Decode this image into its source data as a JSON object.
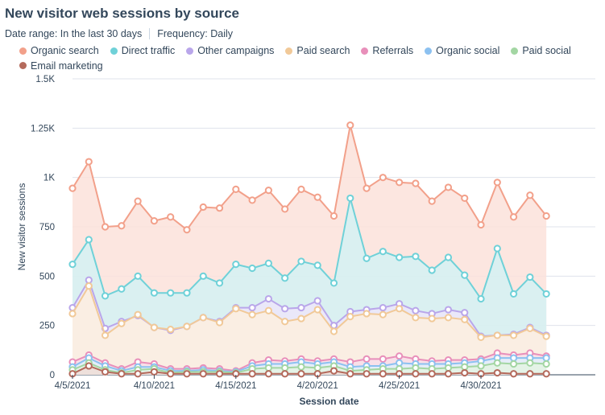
{
  "header": {
    "title": "New visitor web sessions by source",
    "date_range": "Date range: In the last 30 days",
    "frequency": "Frequency: Daily"
  },
  "chart_data": {
    "type": "area",
    "stacked": false,
    "title": "New visitor web sessions by source",
    "xlabel": "Session date",
    "ylabel": "New visitor sessions",
    "ylim": [
      0,
      1500
    ],
    "yticks": [
      0,
      250,
      500,
      750,
      1000,
      1250,
      1500
    ],
    "ytick_labels": [
      "0",
      "250",
      "500",
      "750",
      "1K",
      "1.25K",
      "1.5K"
    ],
    "x": [
      "4/5/2021",
      "4/6/2021",
      "4/7/2021",
      "4/8/2021",
      "4/9/2021",
      "4/10/2021",
      "4/11/2021",
      "4/12/2021",
      "4/13/2021",
      "4/14/2021",
      "4/15/2021",
      "4/16/2021",
      "4/17/2021",
      "4/18/2021",
      "4/19/2021",
      "4/20/2021",
      "4/21/2021",
      "4/22/2021",
      "4/23/2021",
      "4/24/2021",
      "4/25/2021",
      "4/26/2021",
      "4/27/2021",
      "4/28/2021",
      "4/29/2021",
      "4/30/2021",
      "5/1/2021",
      "5/2/2021",
      "5/3/2021",
      "5/4/2021",
      "5/5/2021",
      "5/6/2021",
      "5/7/2021"
    ],
    "xtick_labels": [
      {
        "index": 0,
        "label": "4/5/2021"
      },
      {
        "index": 5,
        "label": "4/10/2021"
      },
      {
        "index": 10,
        "label": "4/15/2021"
      },
      {
        "index": 15,
        "label": "4/20/2021"
      },
      {
        "index": 20,
        "label": "4/25/2021"
      },
      {
        "index": 25,
        "label": "4/30/2021"
      }
    ],
    "legend_position": "top",
    "series": [
      {
        "name": "Organic search",
        "color": "#f2a08a",
        "fill": "#fbe2db",
        "values": [
          945,
          1080,
          750,
          755,
          880,
          780,
          800,
          735,
          850,
          845,
          940,
          885,
          935,
          840,
          940,
          900,
          805,
          1265,
          945,
          1000,
          975,
          970,
          880,
          950,
          895,
          760,
          975,
          800,
          910,
          805,
          0,
          0,
          0
        ]
      },
      {
        "name": "Direct traffic",
        "color": "#6fd1d8",
        "fill": "#d4f1f3",
        "values": [
          560,
          685,
          400,
          435,
          500,
          415,
          415,
          415,
          500,
          465,
          560,
          540,
          565,
          490,
          575,
          555,
          465,
          895,
          590,
          625,
          595,
          600,
          530,
          595,
          505,
          385,
          640,
          410,
          495,
          410,
          0,
          0,
          0
        ]
      },
      {
        "name": "Other campaigns",
        "color": "#b9a6ea",
        "fill": "#ece6fa",
        "values": [
          340,
          480,
          235,
          270,
          300,
          240,
          225,
          245,
          290,
          270,
          340,
          340,
          385,
          335,
          340,
          375,
          250,
          320,
          330,
          340,
          360,
          325,
          310,
          330,
          315,
          195,
          200,
          205,
          240,
          200,
          0,
          0,
          0
        ]
      },
      {
        "name": "Paid search",
        "color": "#f1c998",
        "fill": "#fdefdf",
        "values": [
          310,
          450,
          200,
          260,
          305,
          240,
          230,
          245,
          290,
          265,
          335,
          305,
          325,
          270,
          285,
          330,
          220,
          295,
          310,
          305,
          335,
          290,
          285,
          290,
          280,
          190,
          200,
          200,
          235,
          195,
          0,
          0,
          0
        ]
      },
      {
        "name": "Referrals",
        "color": "#e88fba",
        "fill": "#f8dde9",
        "values": [
          65,
          100,
          60,
          30,
          65,
          55,
          30,
          30,
          35,
          30,
          20,
          60,
          75,
          70,
          80,
          70,
          80,
          65,
          80,
          80,
          95,
          80,
          70,
          75,
          75,
          80,
          110,
          100,
          110,
          95,
          0,
          0,
          0
        ]
      },
      {
        "name": "Organic social",
        "color": "#8cc1f0",
        "fill": "#e2effb",
        "values": [
          40,
          85,
          45,
          20,
          40,
          40,
          20,
          20,
          25,
          20,
          15,
          45,
          55,
          55,
          65,
          55,
          65,
          40,
          45,
          45,
          60,
          55,
          55,
          55,
          60,
          70,
          85,
          85,
          85,
          85,
          0,
          0,
          0
        ]
      },
      {
        "name": "Paid social",
        "color": "#a3d6a3",
        "fill": "#e4f3e4",
        "values": [
          25,
          60,
          25,
          10,
          25,
          30,
          10,
          15,
          15,
          15,
          10,
          30,
          35,
          35,
          40,
          35,
          45,
          20,
          25,
          30,
          30,
          35,
          30,
          35,
          40,
          45,
          60,
          55,
          60,
          55,
          0,
          0,
          0
        ]
      },
      {
        "name": "Email marketing",
        "color": "#b46a5c",
        "fill": "#f0dcd8",
        "values": [
          5,
          45,
          15,
          5,
          5,
          15,
          5,
          5,
          5,
          5,
          5,
          5,
          5,
          5,
          5,
          5,
          20,
          5,
          5,
          5,
          5,
          5,
          5,
          5,
          10,
          5,
          10,
          5,
          5,
          5,
          0,
          0,
          0
        ]
      }
    ]
  }
}
